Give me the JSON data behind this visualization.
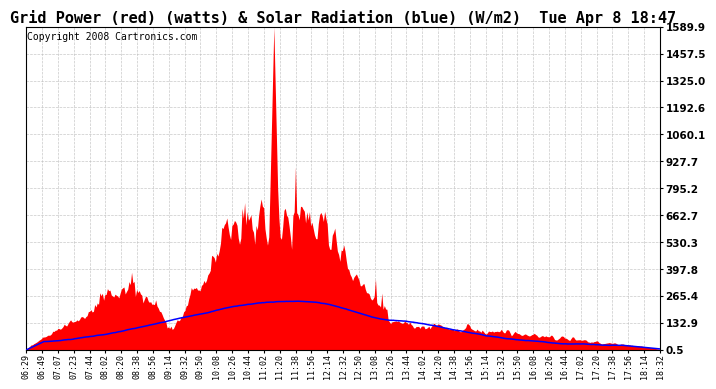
{
  "title": "Grid Power (red) (watts) & Solar Radiation (blue) (W/m2)  Tue Apr 8 18:47",
  "copyright": "Copyright 2008 Cartronics.com",
  "yticks": [
    0.5,
    132.9,
    265.4,
    397.8,
    530.3,
    662.7,
    795.2,
    927.7,
    1060.1,
    1192.6,
    1325.0,
    1457.5,
    1589.9
  ],
  "ymin": 0.5,
  "ymax": 1589.9,
  "bg_color": "#ffffff",
  "plot_bg_color": "#ffffff",
  "grid_color": "#bbbbbb",
  "red_color": "#ff0000",
  "blue_color": "#0000ff",
  "title_fontsize": 11,
  "copyright_fontsize": 7,
  "xtick_fontsize": 6,
  "ytick_fontsize": 7.5,
  "xtick_labels": [
    "06:29",
    "06:49",
    "07:07",
    "07:23",
    "07:44",
    "08:02",
    "08:20",
    "08:38",
    "08:56",
    "09:14",
    "09:32",
    "09:50",
    "10:08",
    "10:26",
    "10:44",
    "11:02",
    "11:20",
    "11:38",
    "11:56",
    "12:14",
    "12:32",
    "12:50",
    "13:08",
    "13:26",
    "13:44",
    "14:02",
    "14:20",
    "14:38",
    "14:56",
    "15:14",
    "15:32",
    "15:50",
    "16:08",
    "16:26",
    "16:44",
    "17:02",
    "17:20",
    "17:38",
    "17:56",
    "18:14",
    "18:32"
  ]
}
